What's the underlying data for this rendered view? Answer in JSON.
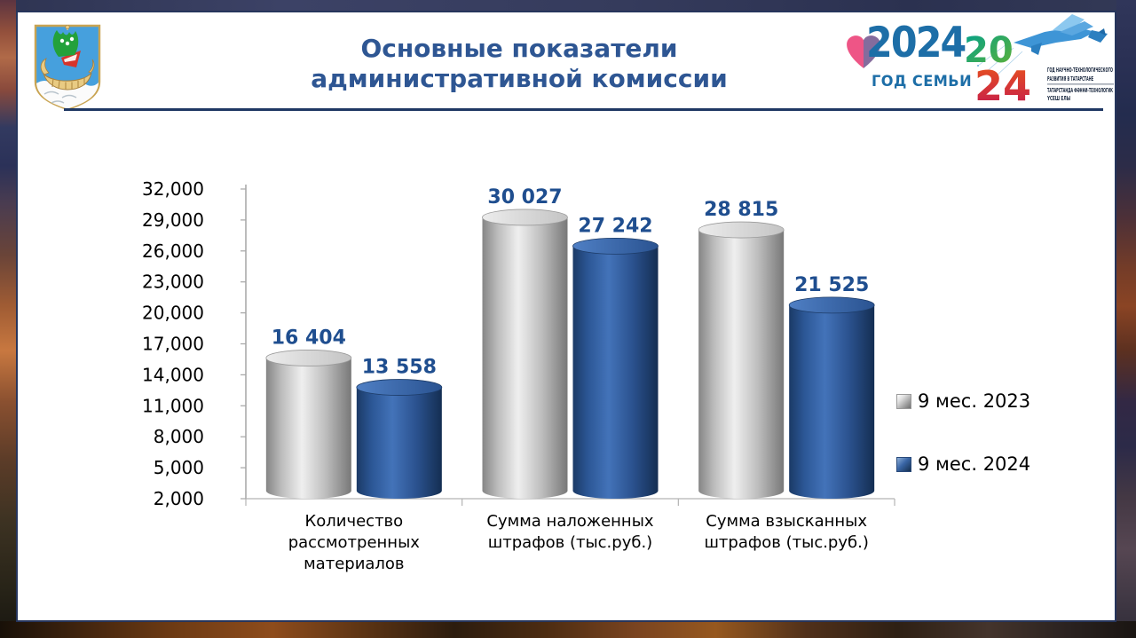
{
  "slide": {
    "title_line1": "Основные показатели",
    "title_line2": "административной комиссии"
  },
  "theme": {
    "title_color": "#2e5693",
    "divider_color": "#1f3864",
    "panel_border_color": "#26355c",
    "value_label_color": "#1f4e8f",
    "bar_2023_color": "#bfbfbf",
    "bar_2024_color": "#2f5fa5"
  },
  "icons": {
    "coat_of_arms": "coat-of-arms-naberezhnye-chelny",
    "family_heart": "heart-icon",
    "leopard": "winged-snow-leopard-icon"
  },
  "logos": {
    "family_year": {
      "year": "2024",
      "caption": "ГОД СЕМЬИ",
      "color": "#1d6ea7",
      "heart_color": "#ee5586"
    },
    "tatarstan_year": {
      "digits_top": "20",
      "digits_bottom": "24",
      "ru_line1": "ГОД НАУЧНО-ТЕХНОЛОГИЧЕСКОГО",
      "ru_line2": "РАЗВИТИЯ В ТАТАРСТАНЕ",
      "tt_line1": "ТАТАРСТАНДА ФӘННИ-ТЕХНОЛОГИК",
      "tt_line2": "ҮСЕШ ЕЛЫ"
    }
  },
  "chart_data": {
    "type": "bar",
    "style": "cylinder-3d",
    "title": "",
    "xlabel": "",
    "ylabel": "",
    "categories": [
      "Количество рассмотренных материалов",
      "Сумма наложенных штрафов (тыс.руб.)",
      "Сумма взысканных штрафов (тыс.руб.)"
    ],
    "series": [
      {
        "name": "9 мес. 2023",
        "values": [
          16404,
          30027,
          28815
        ],
        "labels": [
          "16 404",
          "30 027",
          "28 815"
        ],
        "color": "#bfbfbf"
      },
      {
        "name": "9 мес. 2024",
        "values": [
          13558,
          27242,
          21525
        ],
        "labels": [
          "13 558",
          "27 242",
          "21 525"
        ],
        "color": "#2f5fa5"
      }
    ],
    "ylim": [
      2000,
      32000
    ],
    "ytick_step": 3000,
    "yticks": [
      "2,000",
      "5,000",
      "8,000",
      "11,000",
      "14,000",
      "17,000",
      "20,000",
      "23,000",
      "26,000",
      "29,000",
      "32,000"
    ],
    "grid": false,
    "legend_position": "right"
  }
}
